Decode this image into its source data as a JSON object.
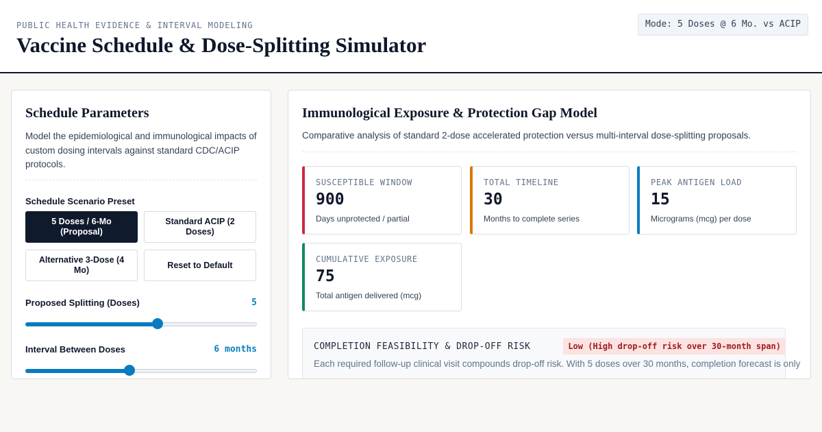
{
  "header": {
    "eyebrow": "PUBLIC HEALTH EVIDENCE & INTERVAL MODELING",
    "title": "Vaccine Schedule & Dose-Splitting Simulator",
    "mode": "Mode: 5 Doses @ 6 Mo. vs ACIP"
  },
  "params": {
    "title": "Schedule Parameters",
    "description": "Model the epidemiological and immunological impacts of custom dosing intervals against standard CDC/ACIP protocols.",
    "preset_label": "Schedule Scenario Preset",
    "presets": [
      {
        "label": "5 Doses / 6-Mo (Proposal)",
        "active": true
      },
      {
        "label": "Standard ACIP (2 Doses)",
        "active": false
      },
      {
        "label": "Alternative 3-Dose (4 Mo)",
        "active": false
      },
      {
        "label": "Reset to Default",
        "active": false
      }
    ],
    "doses_label": "Proposed Splitting (Doses)",
    "doses_value": "5",
    "doses_fraction": 0.57,
    "interval_label": "Interval Between Doses",
    "interval_value": "6 months",
    "interval_fraction": 0.45
  },
  "model": {
    "title": "Immunological Exposure & Protection Gap Model",
    "description": "Comparative analysis of standard 2-dose accelerated protection versus multi-interval dose-splitting proposals.",
    "metrics": [
      {
        "key": "SUSCEPTIBLE WINDOW",
        "value": "900",
        "sub": "Days unprotected / partial",
        "color": "#d0293f"
      },
      {
        "key": "TOTAL TIMELINE",
        "value": "30",
        "sub": "Months to complete series",
        "color": "#d97706"
      },
      {
        "key": "PEAK ANTIGEN LOAD",
        "value": "15",
        "sub": "Micrograms (mcg) per dose",
        "color": "#0a7bc0"
      },
      {
        "key": "CUMULATIVE EXPOSURE",
        "value": "75",
        "sub": "Total antigen delivered (mcg)",
        "color": "#0f8a5f"
      }
    ],
    "feasibility": {
      "title": "COMPLETION FEASIBILITY & DROP-OFF RISK",
      "badge": "Low (High drop-off risk over 30-month span)",
      "text": "Each required follow-up clinical visit compounds drop-off risk. With 5 doses over 30 months, completion forecast is only"
    }
  }
}
